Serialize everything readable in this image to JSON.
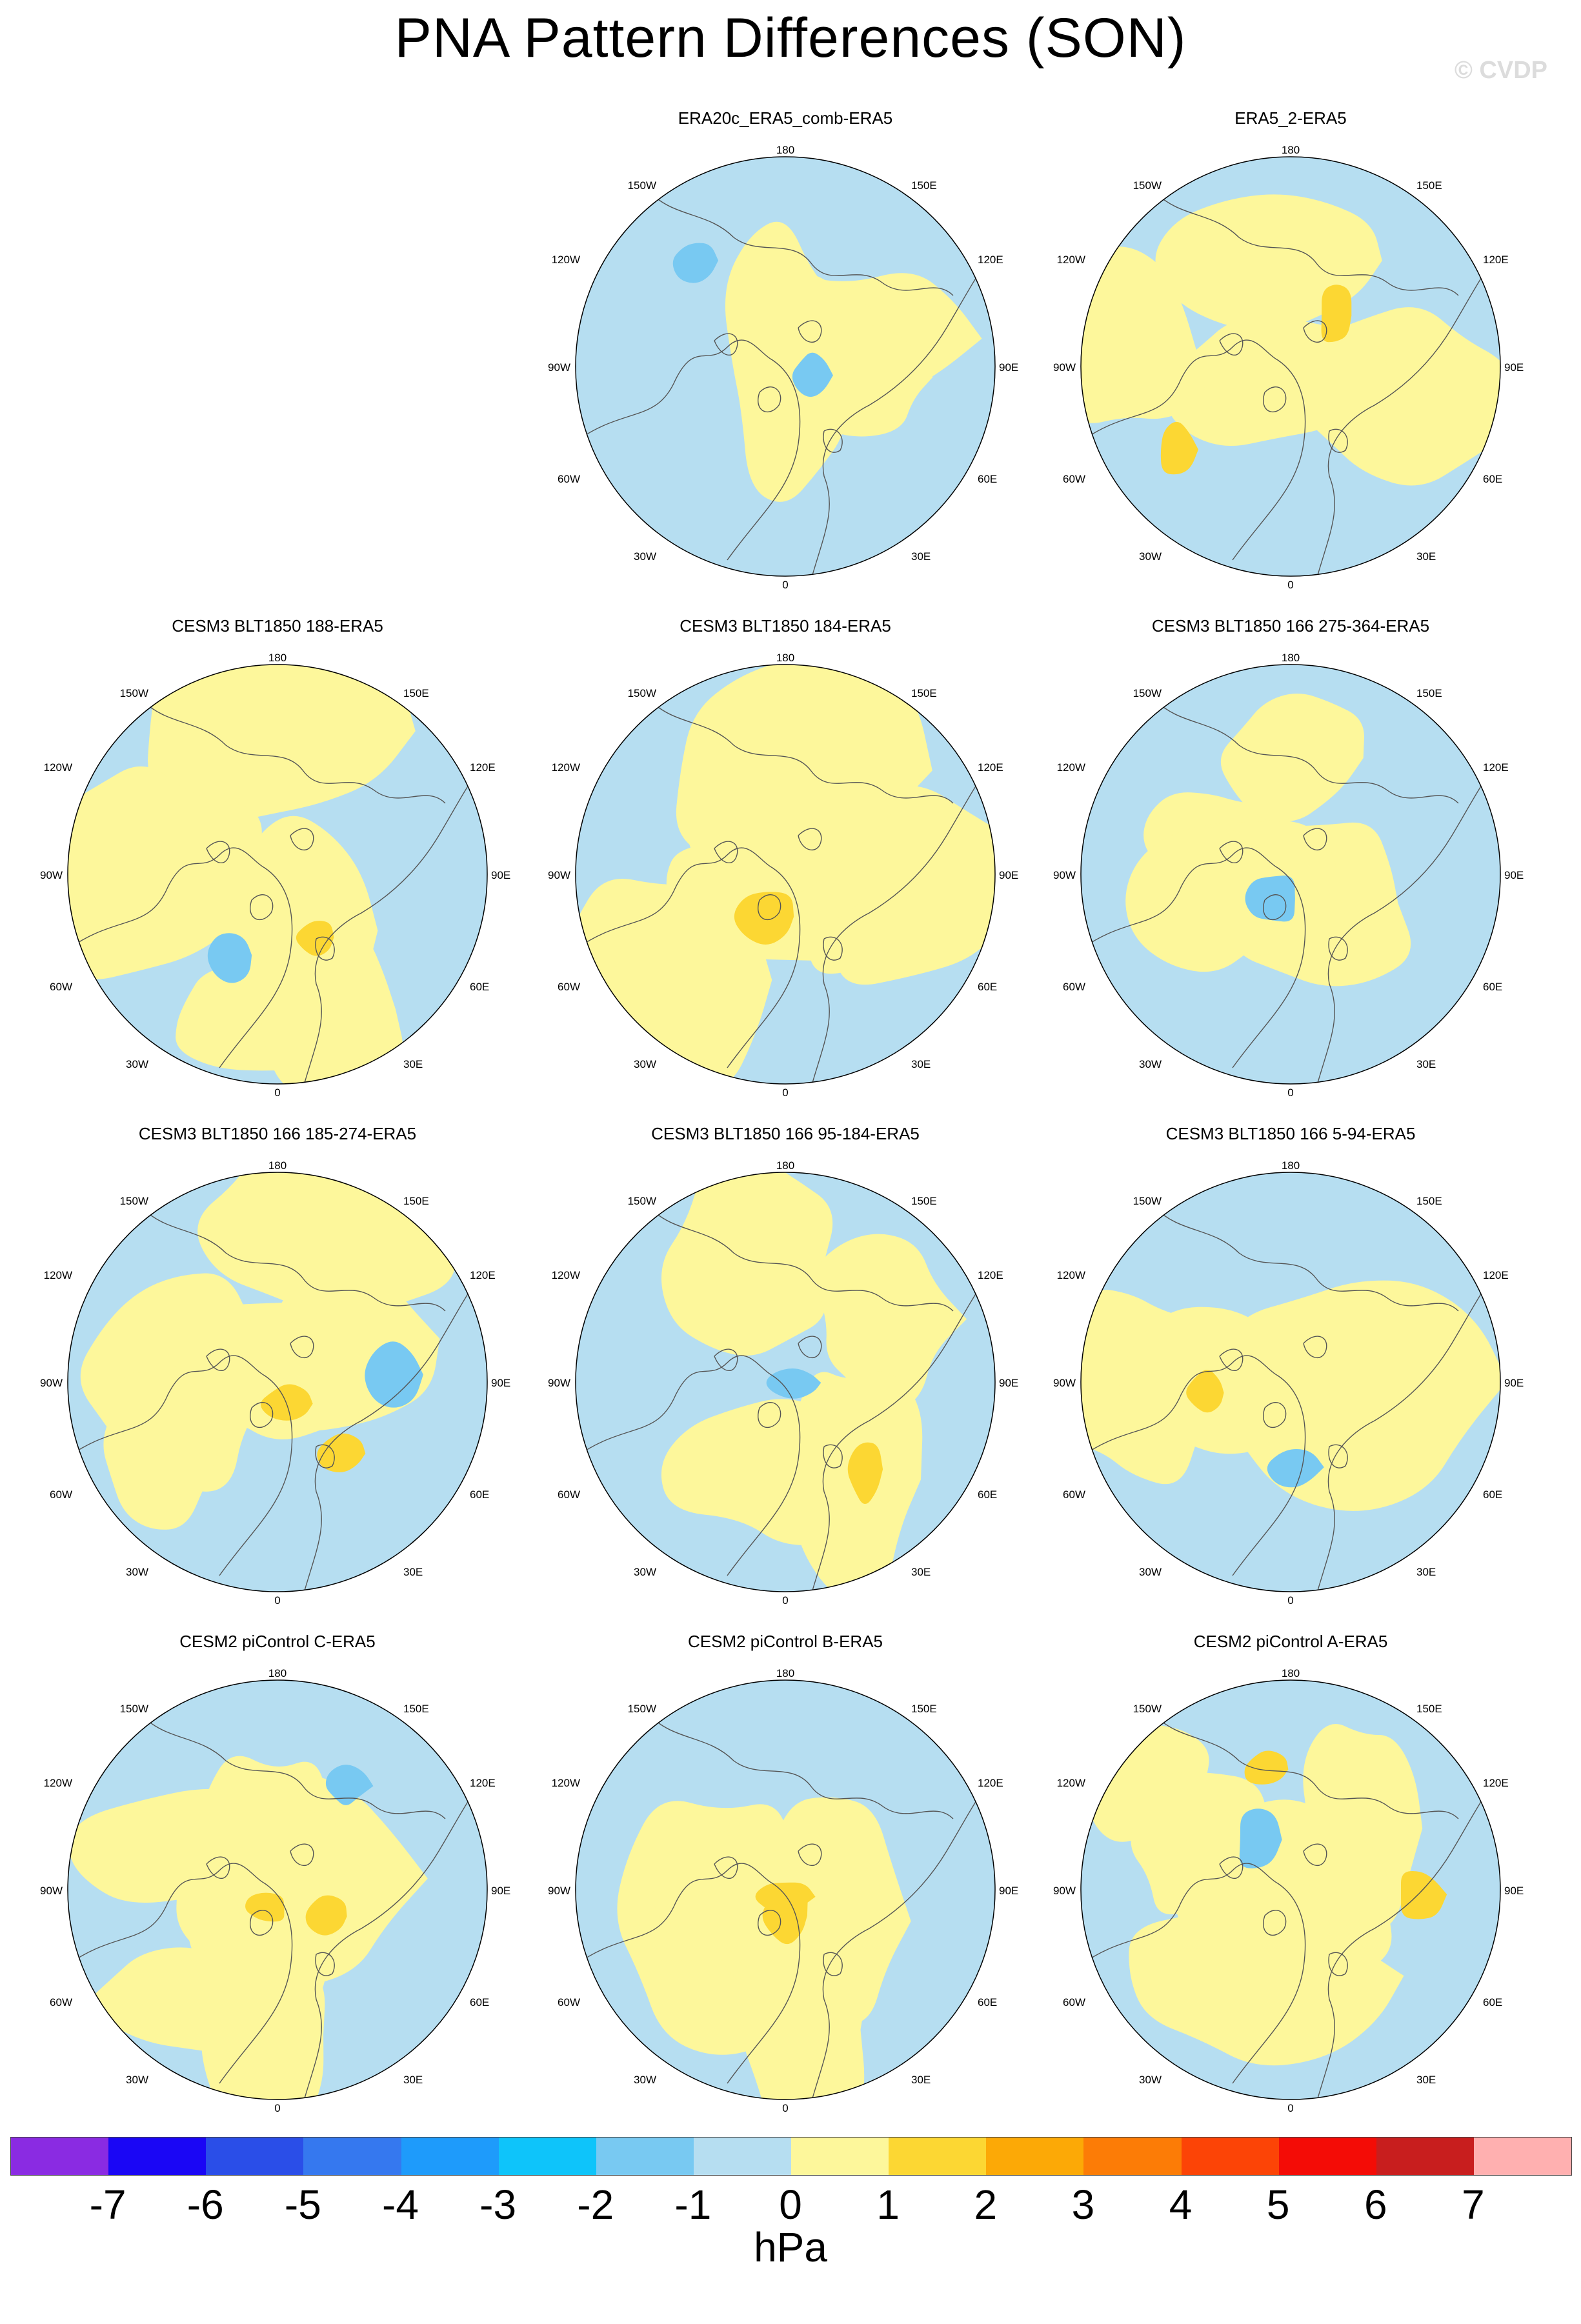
{
  "title": "PNA Pattern Differences (SON)",
  "watermark": "© CVDP",
  "lon_labels": {
    "top": "180",
    "bottom": "0",
    "upper_left": "150W",
    "upper_right": "150E",
    "mid_upper_left": "120W",
    "mid_upper_right": "120E",
    "left": "90W",
    "right": "90E",
    "mid_lower_left": "60W",
    "mid_lower_right": "60E",
    "lower_left": "30W",
    "lower_right": "30E"
  },
  "colors": {
    "-7": "#8a2be2",
    "-6": "#1a06f5",
    "-5": "#2a4ee8",
    "-4": "#3578ef",
    "-3": "#1e9bfb",
    "-2": "#0ec4fa",
    "-1": "#78c9f2",
    "0": "#b6def1",
    "1": "#fdf79b",
    "2": "#fcd733",
    "3": "#fca906",
    "4": "#fc7c06",
    "5": "#fc4406",
    "6": "#f40c06",
    "7": "#c81e1e",
    "8": "#ffb0b0"
  },
  "colorbar": {
    "ticks": [
      "-7",
      "-6",
      "-5",
      "-4",
      "-3",
      "-2",
      "-1",
      "0",
      "1",
      "2",
      "3",
      "4",
      "5",
      "6",
      "7"
    ],
    "unit": "hPa"
  },
  "panels": [
    {
      "title": "ERA20c_ERA5_comb-ERA5",
      "row": 0,
      "col": 1
    },
    {
      "title": "ERA5_2-ERA5",
      "row": 0,
      "col": 2
    },
    {
      "title": "CESM3 BLT1850 188-ERA5",
      "row": 1,
      "col": 0
    },
    {
      "title": "CESM3 BLT1850 184-ERA5",
      "row": 1,
      "col": 1
    },
    {
      "title": "CESM3 BLT1850 166 275-364-ERA5",
      "row": 1,
      "col": 2
    },
    {
      "title": "CESM3 BLT1850 166 185-274-ERA5",
      "row": 2,
      "col": 0
    },
    {
      "title": "CESM3 BLT1850 166 95-184-ERA5",
      "row": 2,
      "col": 1
    },
    {
      "title": "CESM3 BLT1850 166 5-94-ERA5",
      "row": 2,
      "col": 2
    },
    {
      "title": "CESM2 piControl C-ERA5",
      "row": 3,
      "col": 0
    },
    {
      "title": "CESM2 piControl B-ERA5",
      "row": 3,
      "col": 1
    },
    {
      "title": "CESM2 piControl A-ERA5",
      "row": 3,
      "col": 2
    }
  ]
}
